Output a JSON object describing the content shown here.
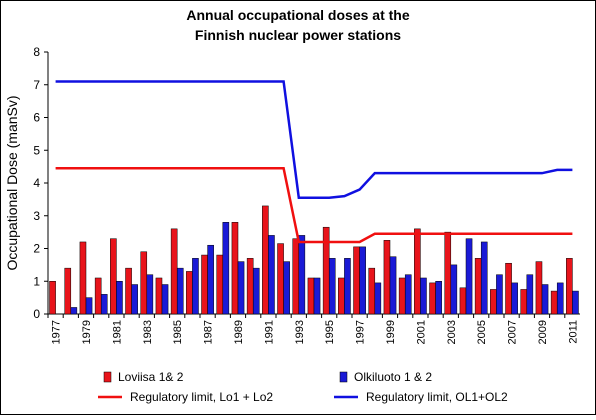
{
  "chart_data": {
    "type": "bar",
    "title": [
      "Annual occupational doses at the",
      "Finnish nuclear power stations"
    ],
    "y_label": "Occupational Dose (manSv)",
    "categories": [
      "1977",
      null,
      "1979",
      null,
      "1981",
      null,
      "1983",
      null,
      "1985",
      null,
      "1987",
      null,
      "1989",
      null,
      "1991",
      null,
      "1993",
      null,
      "1995",
      null,
      "1997",
      null,
      "1999",
      null,
      "2001",
      null,
      "2003",
      null,
      "2005",
      null,
      "2007",
      null,
      "2009",
      null,
      "2011"
    ],
    "ylim": [
      0,
      8
    ],
    "yticks": [
      0,
      1,
      2,
      3,
      4,
      5,
      6,
      7,
      8
    ],
    "series": [
      {
        "name": "Loviisa 1& 2",
        "type": "bar",
        "color": "#e8141b",
        "values": [
          1.0,
          1.4,
          2.2,
          1.1,
          2.3,
          1.4,
          1.9,
          1.1,
          2.6,
          1.3,
          1.8,
          1.8,
          2.8,
          1.7,
          3.3,
          2.15,
          2.3,
          1.1,
          2.65,
          1.1,
          2.05,
          1.4,
          2.25,
          1.1,
          2.6,
          0.95,
          2.5,
          0.8,
          1.7,
          0.75,
          1.55,
          0.75,
          1.6,
          0.7,
          1.7
        ]
      },
      {
        "name": "Olkiluoto 1 & 2",
        "type": "bar",
        "color": "#1a1ad6",
        "values": [
          0,
          0.2,
          0.5,
          0.6,
          1.0,
          0.9,
          1.2,
          0.9,
          1.4,
          1.7,
          2.1,
          2.8,
          1.6,
          1.4,
          2.4,
          1.6,
          2.4,
          1.1,
          1.7,
          1.7,
          2.05,
          0.95,
          1.75,
          1.2,
          1.1,
          1.0,
          1.5,
          2.3,
          2.2,
          1.2,
          0.95,
          1.2,
          0.9,
          0.95,
          0.7
        ]
      },
      {
        "name": "Regulatory limit, Lo1 + Lo2",
        "type": "line",
        "color": "#f01010",
        "values": [
          4.45,
          4.45,
          4.45,
          4.45,
          4.45,
          4.45,
          4.45,
          4.45,
          4.45,
          4.45,
          4.45,
          4.45,
          4.45,
          4.45,
          4.45,
          4.45,
          2.2,
          2.2,
          2.2,
          2.2,
          2.2,
          2.45,
          2.45,
          2.45,
          2.45,
          2.45,
          2.45,
          2.45,
          2.45,
          2.45,
          2.45,
          2.45,
          2.45,
          2.45,
          2.45
        ]
      },
      {
        "name": "Regulatory limit, OL1+OL2",
        "type": "line",
        "color": "#1010e0",
        "values": [
          7.1,
          7.1,
          7.1,
          7.1,
          7.1,
          7.1,
          7.1,
          7.1,
          7.1,
          7.1,
          7.1,
          7.1,
          7.1,
          7.1,
          7.1,
          7.1,
          3.55,
          3.55,
          3.55,
          3.6,
          3.8,
          4.3,
          4.3,
          4.3,
          4.3,
          4.3,
          4.3,
          4.3,
          4.3,
          4.3,
          4.3,
          4.3,
          4.3,
          4.4,
          4.4
        ]
      }
    ]
  }
}
